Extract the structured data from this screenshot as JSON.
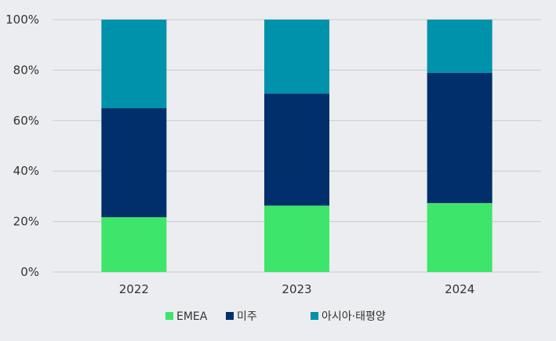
{
  "chart_data": {
    "type": "bar",
    "stacked": true,
    "percent": true,
    "categories": [
      "2022",
      "2023",
      "2024"
    ],
    "series": [
      {
        "name": "EMEA",
        "color": "#3de66a",
        "values": [
          21.7,
          26.3,
          27.3
        ]
      },
      {
        "name": "미주",
        "color": "#002f6c",
        "values": [
          43.2,
          44.4,
          51.6
        ]
      },
      {
        "name": "아시아·태평양",
        "color": "#0091ab",
        "values": [
          35.1,
          29.3,
          21.1
        ]
      }
    ],
    "ylim": [
      0,
      100
    ],
    "yticks": [
      "0%",
      "20%",
      "40%",
      "60%",
      "80%",
      "100%"
    ],
    "grid": true,
    "legend_position": "bottom",
    "title": "",
    "xlabel": "",
    "ylabel": ""
  }
}
